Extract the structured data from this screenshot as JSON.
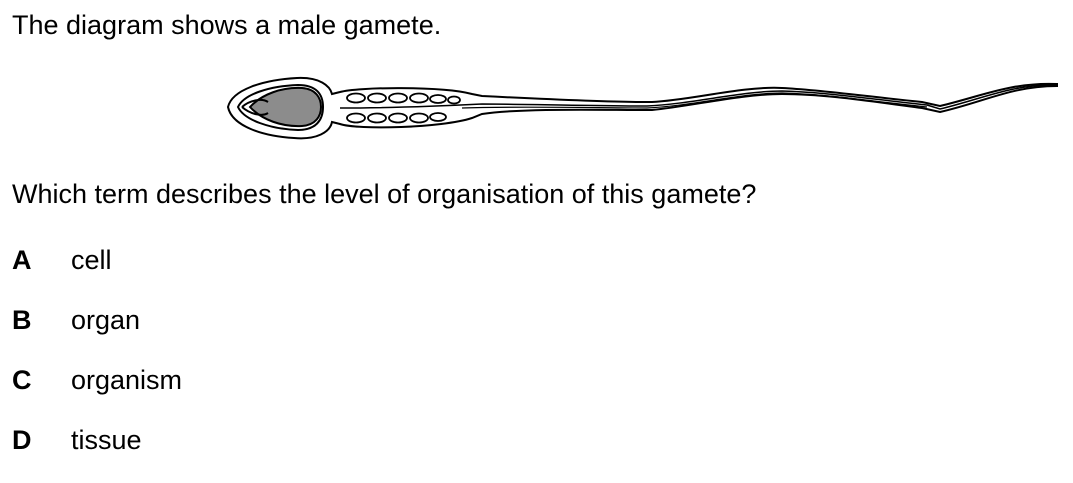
{
  "intro_text": "The diagram shows a male gamete.",
  "question_text": "Which term describes the level of organisation of this gamete?",
  "options": [
    {
      "letter": "A",
      "text": "cell"
    },
    {
      "letter": "B",
      "text": "organ"
    },
    {
      "letter": "C",
      "text": "organism"
    },
    {
      "letter": "D",
      "text": "tissue"
    }
  ],
  "diagram": {
    "subject": "sperm-cell",
    "nucleus_color": "#8c8c8c",
    "outline_color": "#000000"
  }
}
